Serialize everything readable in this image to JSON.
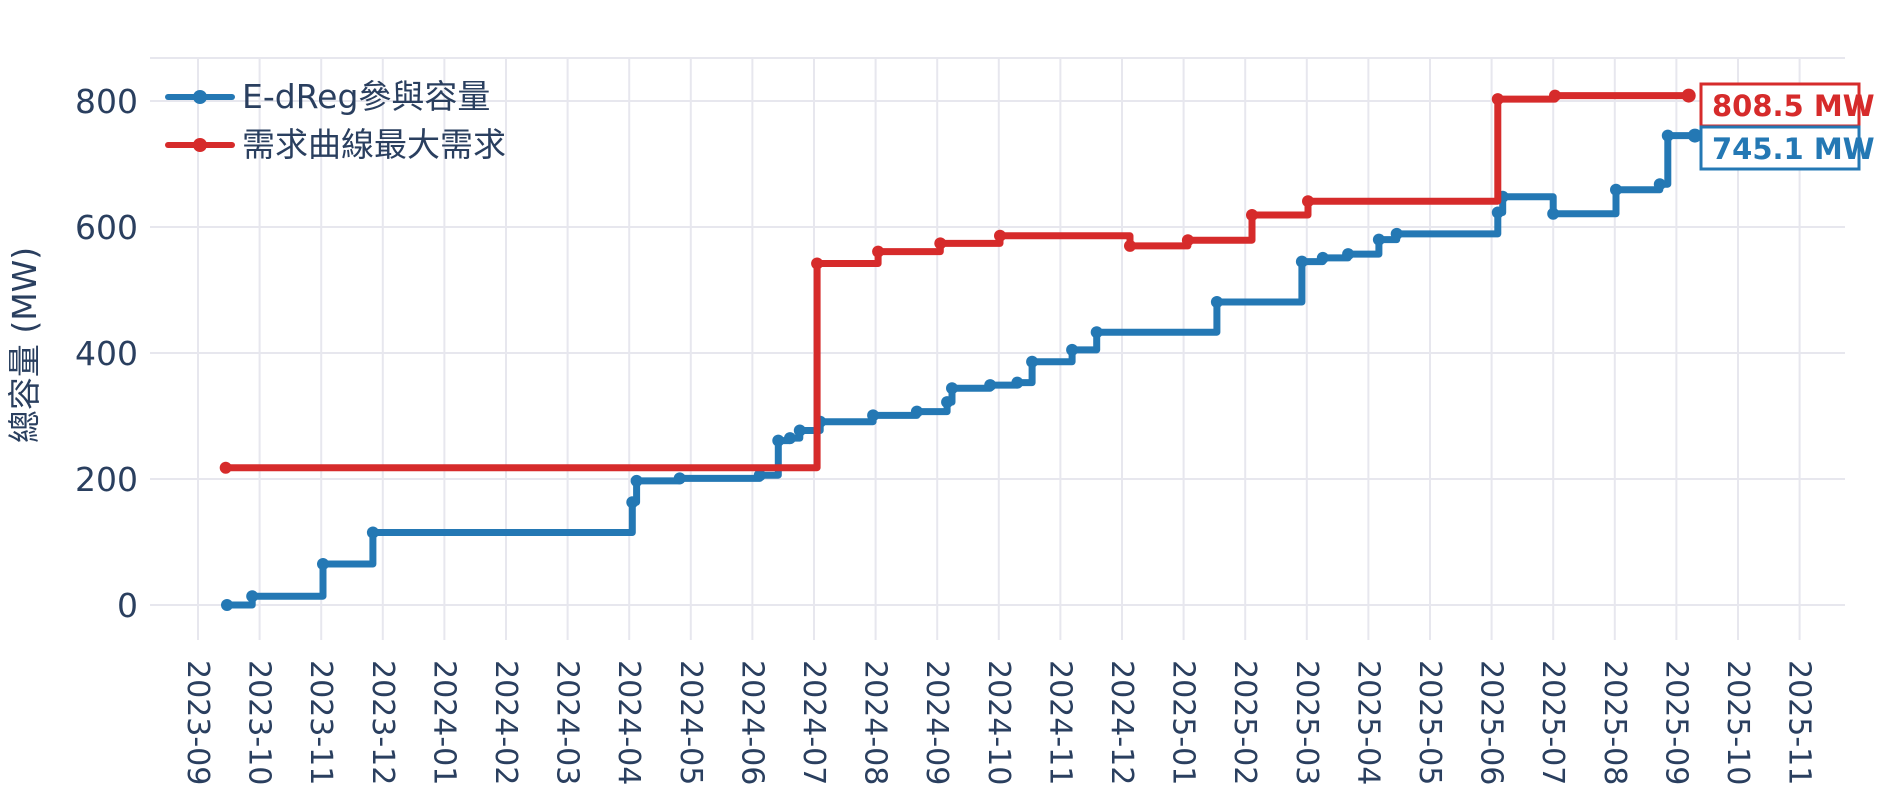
{
  "figure": {
    "background": "#ffffff",
    "text_color": "#2a3f5f",
    "grid_color": "#e7e7ee"
  },
  "chart_data": {
    "type": "line",
    "step_mode": "post",
    "title": "",
    "xlabel": "",
    "ylabel": "總容量 (MW)",
    "x_unit": "month index from 2023-09 (fractional = day within month)",
    "x_tick_labels": [
      "2023-09",
      "2023-10",
      "2023-11",
      "2023-12",
      "2024-01",
      "2024-02",
      "2024-03",
      "2024-04",
      "2024-05",
      "2024-06",
      "2024-07",
      "2024-08",
      "2024-09",
      "2024-10",
      "2024-11",
      "2024-12",
      "2025-01",
      "2025-02",
      "2025-03",
      "2025-04",
      "2025-05",
      "2025-06",
      "2025-07",
      "2025-08",
      "2025-09",
      "2025-10",
      "2025-11"
    ],
    "y_ticks": [
      0,
      200,
      400,
      600,
      800
    ],
    "ylim": [
      -60,
      880
    ],
    "grid": true,
    "legend_position": "top-left-inside",
    "series": [
      {
        "id": "edreg",
        "name": "E-dReg參與容量",
        "color": "#2478b4",
        "final_value_mw": 745.1,
        "end_m": 24.3,
        "points": [
          [
            0.47,
            0
          ],
          [
            0.88,
            14
          ],
          [
            2.03,
            65
          ],
          [
            2.84,
            115
          ],
          [
            7.05,
            163
          ],
          [
            7.12,
            197
          ],
          [
            7.82,
            201
          ],
          [
            9.12,
            206
          ],
          [
            9.42,
            261
          ],
          [
            9.61,
            265
          ],
          [
            9.77,
            277
          ],
          [
            10.1,
            291
          ],
          [
            10.96,
            301
          ],
          [
            11.67,
            307
          ],
          [
            12.16,
            322
          ],
          [
            12.24,
            344
          ],
          [
            12.86,
            349
          ],
          [
            13.3,
            353
          ],
          [
            13.54,
            386
          ],
          [
            14.19,
            405
          ],
          [
            14.59,
            433
          ],
          [
            16.54,
            481
          ],
          [
            17.92,
            545
          ],
          [
            18.26,
            551
          ],
          [
            18.67,
            557
          ],
          [
            19.17,
            580
          ],
          [
            19.46,
            589
          ],
          [
            21.1,
            623
          ],
          [
            21.18,
            648
          ],
          [
            22.0,
            621
          ],
          [
            23.02,
            659
          ],
          [
            23.73,
            668
          ],
          [
            23.86,
            745.1
          ]
        ]
      },
      {
        "id": "demand",
        "name": "需求曲線最大需求",
        "color": "#d62b2b",
        "final_value_mw": 808.5,
        "end_m": 24.2,
        "points": [
          [
            0.45,
            218
          ],
          [
            10.05,
            542
          ],
          [
            11.04,
            561
          ],
          [
            12.05,
            574
          ],
          [
            13.02,
            586
          ],
          [
            15.13,
            570
          ],
          [
            16.07,
            579
          ],
          [
            17.11,
            619
          ],
          [
            18.02,
            641
          ],
          [
            21.1,
            803
          ],
          [
            22.03,
            808.5
          ]
        ]
      }
    ],
    "annotations": [
      {
        "text": "808.5 MW",
        "color": "#d62b2b",
        "series": "demand"
      },
      {
        "text": "745.1 MW",
        "color": "#2478b4",
        "series": "edreg"
      }
    ]
  }
}
